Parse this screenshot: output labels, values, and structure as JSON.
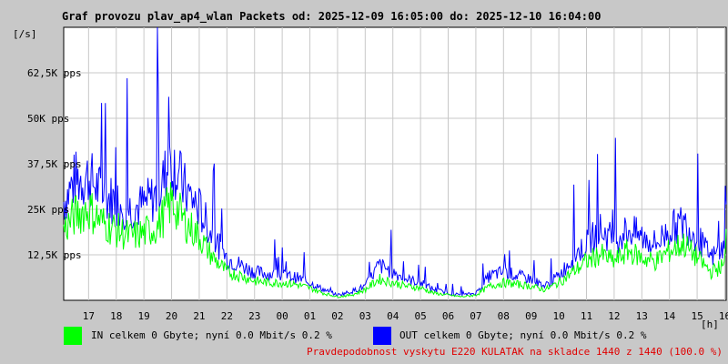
{
  "chart_title": "Graf provozu plav_ap4_wlan Packets od: 2025-12-09 16:05:00 do: 2025-12-10 16:04:00",
  "y_unit": "[/s]",
  "x_unit": "[h]",
  "colors": {
    "in": "#00ff00",
    "out": "#0000ff",
    "background": "#ffffff",
    "grid": "#c8c8c8",
    "footer": "#e00000"
  },
  "legend": {
    "in_text": "IN celkem 0 Gbyte; nyní   0.0 Mbit/s 0.2 %",
    "out_text": "OUT celkem 0 Gbyte; nyní   0.0 Mbit/s 0.2 %"
  },
  "footer_text": "Pravdepodobnost vyskytu E220 KULATAK na skladce 1440 z 1440 (100.0 %)",
  "chart_data": {
    "type": "line",
    "title": "Graf provozu plav_ap4_wlan Packets od: 2025-12-09 16:05:00 do: 2025-12-10 16:04:00",
    "xlabel": "[h]",
    "ylabel": "[/s]",
    "x_ticks": [
      "17",
      "18",
      "19",
      "20",
      "21",
      "22",
      "23",
      "00",
      "01",
      "02",
      "03",
      "04",
      "05",
      "06",
      "07",
      "08",
      "09",
      "10",
      "11",
      "12",
      "13",
      "14",
      "15",
      "16"
    ],
    "y_ticks": [
      "12,5K pps",
      "25K pps",
      "37,5K pps",
      "50K pps",
      "62,5K pps"
    ],
    "y_tick_values": [
      12500,
      25000,
      37500,
      50000,
      62500
    ],
    "ylim": [
      0,
      75000
    ],
    "x_hours": [
      16.1,
      16.5,
      17,
      17.5,
      18,
      18.5,
      19,
      19.5,
      20,
      20.5,
      21,
      21.5,
      22,
      22.5,
      23,
      23.5,
      24,
      24.5,
      25,
      25.5,
      26,
      26.5,
      27,
      27.5,
      28,
      28.5,
      29,
      29.5,
      30,
      30.5,
      31,
      31.5,
      32,
      32.5,
      33,
      33.5,
      34,
      34.5,
      35,
      35.5,
      36,
      36.5,
      37,
      37.5,
      38,
      38.5,
      39,
      39.5,
      40,
      40.05
    ],
    "series": [
      {
        "name": "OUT",
        "color": "#0000ff",
        "values": [
          28000,
          34000,
          35000,
          30000,
          28000,
          26000,
          27000,
          30000,
          40000,
          31000,
          26000,
          18000,
          12000,
          10000,
          8000,
          7500,
          7000,
          6500,
          5000,
          3000,
          1500,
          2500,
          4000,
          10000,
          8000,
          6000,
          5000,
          3000,
          2000,
          1500,
          2000,
          7000,
          8000,
          7000,
          6000,
          4000,
          7000,
          12000,
          16000,
          20000,
          17000,
          20000,
          18000,
          16000,
          20000,
          22000,
          18000,
          12000,
          15000,
          24000
        ]
      },
      {
        "name": "IN",
        "color": "#00ff00",
        "values": [
          20000,
          24000,
          26000,
          22000,
          20000,
          18000,
          19000,
          21000,
          28000,
          22000,
          18000,
          12000,
          8000,
          7000,
          5500,
          5000,
          5000,
          4500,
          3500,
          2000,
          1000,
          1500,
          3000,
          6000,
          5000,
          4000,
          3500,
          2000,
          1500,
          1000,
          1500,
          4000,
          5000,
          4500,
          4000,
          3000,
          5000,
          8000,
          11000,
          13000,
          11000,
          14000,
          12000,
          11000,
          14000,
          16000,
          12000,
          8000,
          10000,
          18000
        ]
      }
    ],
    "grid": true,
    "legend_position": "bottom-left"
  }
}
